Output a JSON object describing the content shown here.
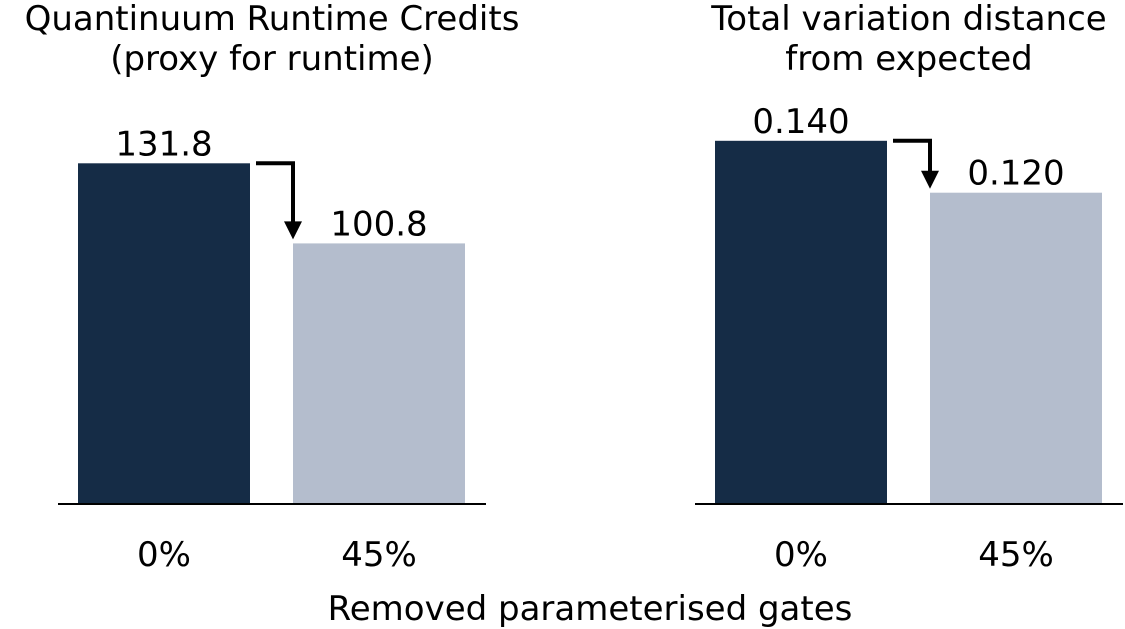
{
  "figure": {
    "xlabel": "Removed parameterised gates"
  },
  "chart_data": [
    {
      "type": "bar",
      "title_lines": [
        "Quantinuum Runtime Credits",
        "(proxy for runtime)"
      ],
      "categories": [
        "0%",
        "45%"
      ],
      "values": [
        131.8,
        100.8
      ],
      "value_labels": [
        "131.8",
        "100.8"
      ],
      "colors": [
        "#152c46",
        "#b4bdcd"
      ],
      "ylim": [
        0,
        140.8
      ],
      "grid": false,
      "legend": "none",
      "annotation": "arrow from first bar to second bar"
    },
    {
      "type": "bar",
      "title_lines": [
        "Total variation distance",
        "from expected"
      ],
      "categories": [
        "0%",
        "45%"
      ],
      "values": [
        0.14,
        0.12
      ],
      "value_labels": [
        "0.140",
        "0.120"
      ],
      "colors": [
        "#152c46",
        "#b4bdcd"
      ],
      "ylim": [
        0,
        0.1403
      ],
      "grid": false,
      "legend": "none",
      "annotation": "arrow from first bar to second bar"
    }
  ]
}
